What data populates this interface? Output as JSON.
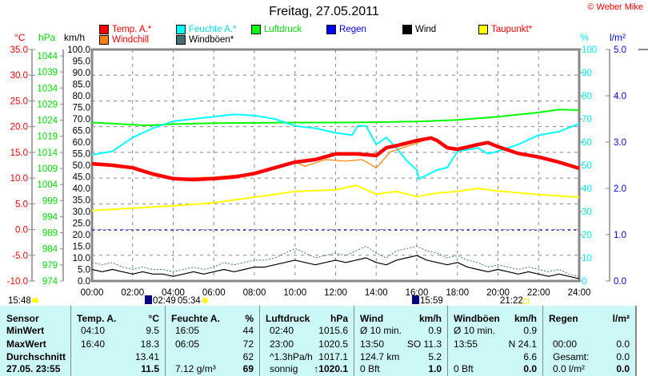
{
  "title": "Freitag, 27.05.2011",
  "copyright": "© Weber Mike",
  "legend": [
    {
      "label": "Temp. A.*",
      "color": "#ff0000",
      "text_color": "#ff0000"
    },
    {
      "label": "Feuchte A.*",
      "color": "#00ffff",
      "text_color": "#00e0e0"
    },
    {
      "label": "Luftdruck",
      "color": "#00ff00",
      "text_color": "#00dd00"
    },
    {
      "label": "Regen",
      "color": "#0000ff",
      "text_color": "#0000ff"
    },
    {
      "label": "Wind",
      "color": "#000000",
      "text_color": "#000000"
    },
    {
      "label": "Taupunkt*",
      "color": "#ffff00",
      "text_color": "#ff0000"
    },
    {
      "label": "Windchill",
      "color": "#ff8000",
      "text_color": "#ff0000"
    },
    {
      "label": "Windböen*",
      "color": "#407070",
      "text_color": "#000000"
    }
  ],
  "axes": {
    "temp": {
      "unit": "°C",
      "color": "#ff0000",
      "ticks": [
        "35.0",
        "30.0",
        "25.0",
        "20.0",
        "15.0",
        "10.0",
        "5.0",
        "0.0",
        "-5.0",
        "-10.0"
      ],
      "range": [
        -10,
        35
      ]
    },
    "pressure": {
      "unit": "hPa",
      "color": "#00dd00",
      "ticks": [
        "1044",
        "1039",
        "1034",
        "1029",
        "1024",
        "1019",
        "1014",
        "1009",
        "1004",
        "999",
        "994",
        "989",
        "984",
        "979",
        "974"
      ]
    },
    "wind": {
      "unit": "km/h",
      "color": "#000000",
      "ticks": [
        "100.0",
        "95.0",
        "90.0",
        "85.0",
        "80.0",
        "75.0",
        "70.0",
        "65.0",
        "60.0",
        "55.0",
        "50.0",
        "45.0",
        "40.0",
        "35.0",
        "30.0",
        "25.0",
        "20.0",
        "15.0",
        "10.0",
        "5.0",
        "0.0"
      ],
      "range": [
        0,
        100
      ]
    },
    "humidity": {
      "unit": "%",
      "color": "#00e0e0",
      "ticks": [
        "100",
        "90",
        "80",
        "70",
        "60",
        "50",
        "40",
        "30",
        "20",
        "10",
        "0"
      ],
      "range": [
        0,
        100
      ]
    },
    "rain": {
      "unit": "l/m²",
      "color": "#0000ff",
      "ticks": [
        "5.0",
        "4.0",
        "3.0",
        "2.0",
        "1.0",
        "0.0"
      ],
      "range": [
        0,
        5
      ]
    },
    "x_ticks": [
      "00:00",
      "02:00",
      "04:00",
      "06:00",
      "08:00",
      "10:00",
      "12:00",
      "14:00",
      "16:00",
      "18:00",
      "20:00",
      "22:00",
      "24:00"
    ]
  },
  "chart_data": {
    "type": "line",
    "title": "Freitag, 27.05.2011",
    "xlim": [
      0,
      24
    ],
    "grid": true,
    "series": [
      {
        "name": "Luftdruck",
        "unit": "hPa",
        "color": "#00ff00",
        "x": [
          0,
          2.7,
          4,
          6,
          8,
          10,
          12,
          14,
          16,
          18,
          20,
          22,
          23,
          24
        ],
        "y": [
          1016.5,
          1015.6,
          1016,
          1016.3,
          1016.4,
          1016.5,
          1016.5,
          1016.6,
          1016.8,
          1017.3,
          1018.3,
          1019.6,
          1020.5,
          1020.3
        ]
      },
      {
        "name": "Feuchte A.*",
        "unit": "%",
        "color": "#00ffff",
        "x": [
          0,
          1,
          2,
          3,
          4,
          5,
          6,
          7,
          8,
          9,
          10,
          11,
          12,
          12.8,
          13.1,
          13.5,
          14,
          14.5,
          15,
          15.5,
          16,
          16.1,
          17,
          17.5,
          18,
          19,
          19.5,
          20,
          21,
          22,
          23,
          24
        ],
        "y": [
          54.5,
          56,
          62,
          66,
          69,
          70,
          71,
          72,
          71.5,
          70,
          67,
          66,
          64,
          63,
          67,
          67,
          59,
          62,
          57.5,
          52,
          48,
          44,
          48,
          49,
          56,
          57.5,
          55,
          56,
          59,
          63,
          64.5,
          68
        ]
      },
      {
        "name": "Taupunkt*",
        "unit": "°C",
        "color": "#ffff00",
        "x": [
          0,
          4,
          6,
          8,
          10,
          12,
          13,
          14,
          15,
          16,
          17,
          18,
          19,
          20,
          22,
          24
        ],
        "y": [
          3.7,
          4.6,
          5.2,
          6.3,
          7.4,
          7.7,
          8.6,
          6.9,
          7.4,
          6.4,
          7.1,
          7.4,
          8.0,
          7.5,
          6.8,
          6.3
        ]
      },
      {
        "name": "Windchill",
        "unit": "°C",
        "color": "#ff8000",
        "x": [
          0,
          2,
          4,
          6,
          8,
          10,
          10.5,
          11.5,
          12.5,
          13.3,
          14,
          14.7,
          16,
          16.7,
          17.5,
          18,
          19.5,
          21,
          22,
          24
        ],
        "y": [
          12.8,
          12.0,
          9.9,
          10.2,
          10.9,
          13.1,
          12.3,
          13.6,
          13.3,
          13.6,
          12.0,
          15.1,
          16.8,
          17.8,
          15.9,
          15.6,
          16.9,
          14.8,
          14.1,
          11.9
        ]
      },
      {
        "name": "Temp. A.*",
        "unit": "°C",
        "color": "#ff0000",
        "x": [
          0,
          1,
          2,
          3,
          4,
          5,
          6,
          7,
          8,
          9,
          10,
          11,
          12,
          13,
          14,
          14.5,
          15,
          16,
          16.7,
          17,
          17.5,
          18,
          19,
          19.5,
          20,
          21,
          22,
          23,
          24
        ],
        "y": [
          12.8,
          12.5,
          12.0,
          10.8,
          9.9,
          9.7,
          9.9,
          10.2,
          10.9,
          12.0,
          13.1,
          13.6,
          14.7,
          14.7,
          14.4,
          15.9,
          16.3,
          17.3,
          17.8,
          17.3,
          15.9,
          15.6,
          16.5,
          16.9,
          16.1,
          14.8,
          14.1,
          13.1,
          11.9
        ]
      },
      {
        "name": "Windböen*",
        "unit": "km/h",
        "color": "#407070",
        "step": 0.5,
        "y": [
          8,
          7,
          8,
          6,
          5,
          6,
          5,
          5,
          4,
          5,
          6,
          5,
          6,
          8,
          7,
          8,
          9,
          9,
          10,
          12,
          14,
          12,
          10,
          11,
          12,
          11,
          13,
          15,
          12,
          10,
          13,
          14,
          15,
          13,
          12,
          10,
          11,
          9,
          8,
          6,
          7,
          6,
          5,
          6,
          5,
          4,
          5,
          3,
          2
        ]
      },
      {
        "name": "Wind",
        "unit": "km/h",
        "color": "#000000",
        "step": 0.5,
        "y": [
          5,
          4,
          5,
          4,
          3,
          4,
          3,
          3,
          2,
          3,
          4,
          3,
          4,
          5,
          4,
          5,
          6,
          6,
          7,
          8,
          9,
          8,
          7,
          8,
          9,
          8,
          9,
          10,
          8,
          7,
          9,
          10,
          11,
          9,
          8,
          7,
          8,
          6,
          5,
          4,
          5,
          4,
          3,
          4,
          3,
          2,
          3,
          2,
          1
        ]
      },
      {
        "name": "Regen",
        "unit": "l/m²",
        "color": "#0000ff",
        "reference_percent": 22,
        "y": [
          0
        ]
      }
    ]
  },
  "astro": {
    "moonset": "15:48",
    "moonrise_label": "02:49",
    "sunrise": "05:34",
    "moon2": "15:59",
    "sunset": "21:22"
  },
  "table": {
    "row_labels": [
      "Sensor",
      "MinWert",
      "MaxWert",
      "Durchschnitt",
      "27.05. 23:55"
    ],
    "columns": [
      {
        "header": "Temp. A.",
        "unit": "°C",
        "rows": [
          [
            "04:10",
            "9.5"
          ],
          [
            "16:40",
            "18.3"
          ],
          [
            "",
            "13.41"
          ],
          [
            "",
            "11.5"
          ]
        ]
      },
      {
        "header": "Feuchte A.",
        "unit": "%",
        "rows": [
          [
            "16:05",
            "44"
          ],
          [
            "06:05",
            "72"
          ],
          [
            "",
            "62"
          ],
          [
            "7.12 g/m³",
            "69"
          ]
        ]
      },
      {
        "header": "Luftdruck",
        "unit": "hPa",
        "rows": [
          [
            "02:40",
            "1015.6"
          ],
          [
            "23:00",
            "1020.5"
          ],
          [
            "^1.3hPa/h",
            "1017.1"
          ],
          [
            "sonnig",
            "↑1020.1"
          ]
        ]
      },
      {
        "header": "Wind",
        "unit": "km/h",
        "rows": [
          [
            "Ø 10 min.",
            "0.9"
          ],
          [
            "13:50",
            "SO 11.3"
          ],
          [
            "124.7 km",
            "5.2"
          ],
          [
            "0 Bft",
            "1.0"
          ]
        ]
      },
      {
        "header": "Windböen",
        "unit": "km/h",
        "rows": [
          [
            "Ø 10 min.",
            "0.9"
          ],
          [
            "13:55",
            "N 24.1"
          ],
          [
            "",
            "6.6"
          ],
          [
            "0 Bft",
            "0.0"
          ]
        ]
      },
      {
        "header": "Regen",
        "unit": "l/m²",
        "rows": [
          [
            "",
            ""
          ],
          [
            "00:00",
            "0.0"
          ],
          [
            "Gesamt:",
            "0.0"
          ],
          [
            "0.0 l/m²",
            "0.0"
          ]
        ]
      }
    ]
  }
}
